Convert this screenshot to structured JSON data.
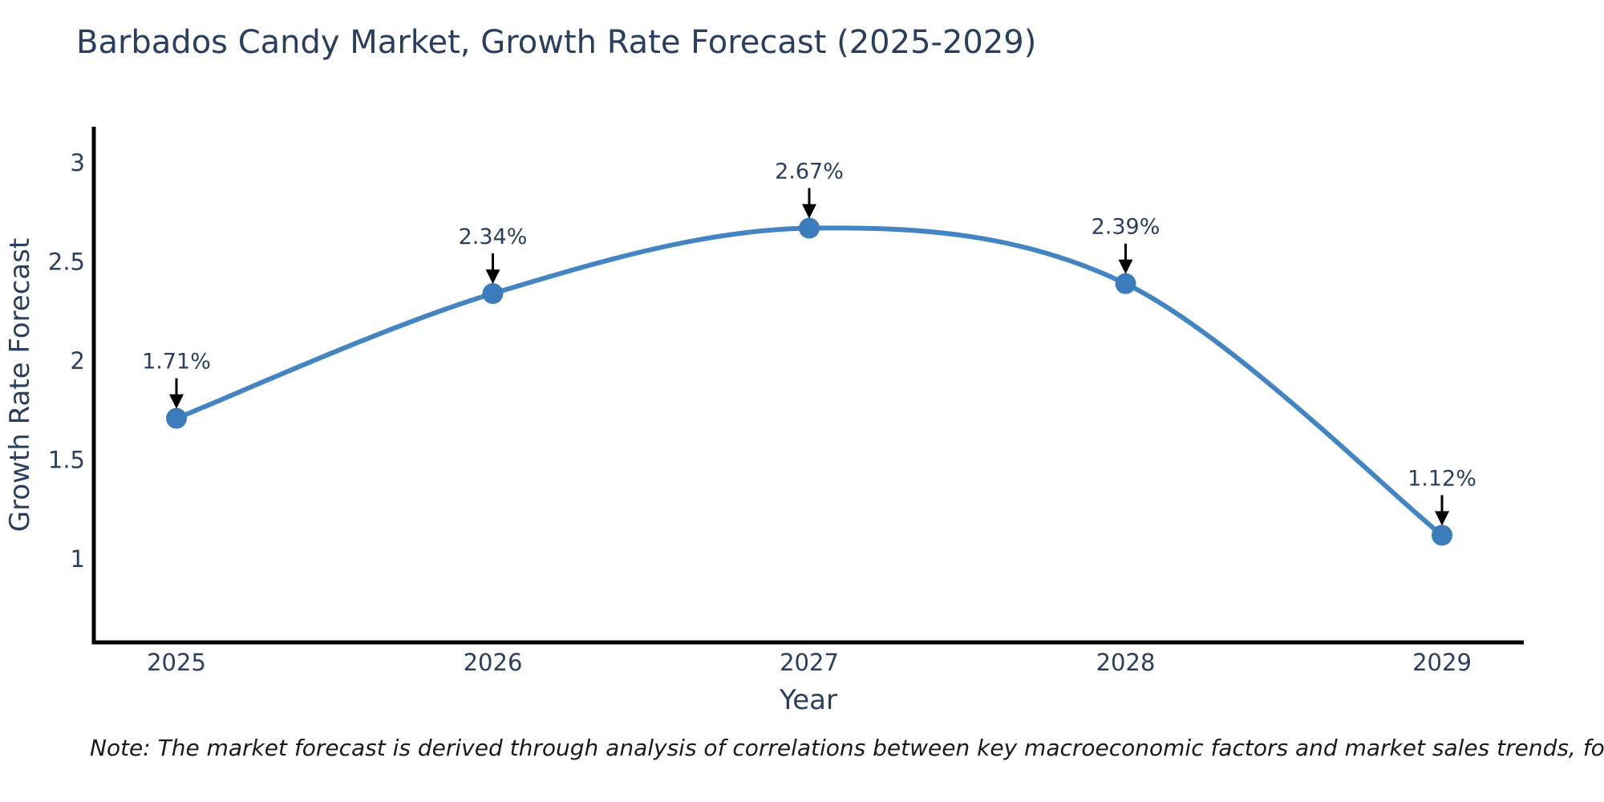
{
  "title": "Barbados Candy Market, Growth Rate Forecast (2025-2029)",
  "note": "Note: The market forecast is derived through analysis of correlations between key macroeconomic factors and market sales trends, followed by predictive modeling to project future sales",
  "colors": {
    "line": "#4285c2",
    "marker": "#3b7cbd",
    "axis": "#000000",
    "text": "#2a3f5f",
    "annotation": "#2a3f5f",
    "arrow": "#000000",
    "background": "#ffffff"
  },
  "chart_data": {
    "type": "line",
    "title": "Barbados Candy Market, Growth Rate Forecast (2025-2029)",
    "xlabel": "Year",
    "ylabel": "Growth Rate Forecast",
    "x": [
      2025,
      2026,
      2027,
      2028,
      2029
    ],
    "y": [
      1.71,
      2.34,
      2.67,
      2.39,
      1.12
    ],
    "point_labels": [
      "1.71%",
      "2.34%",
      "2.67%",
      "2.39%",
      "1.12%"
    ],
    "x_tick_labels": [
      "2025",
      "2026",
      "2027",
      "2028",
      "2029"
    ],
    "y_tick_values": [
      3,
      2.5,
      2,
      1.5,
      1
    ],
    "y_tick_labels": [
      "3",
      "2.5",
      "2",
      "1.5",
      "1"
    ],
    "ylim": [
      0.579,
      3.174
    ],
    "xlim": [
      2024.74,
      2029.26
    ],
    "grid": false,
    "legend": "none",
    "line_shape": "spline",
    "annotations_arrow": "down"
  }
}
